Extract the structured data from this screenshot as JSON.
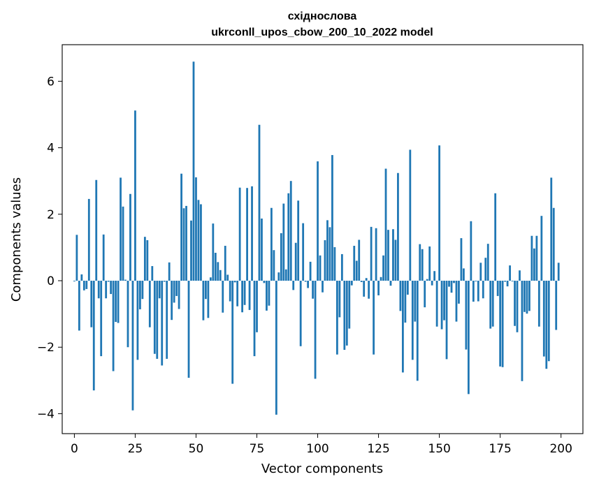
{
  "chart_data": {
    "type": "bar",
    "title": "східнослова",
    "subtitle": "ukrconll_upos_cbow_200_10_2022 model",
    "xlabel": "Vector components",
    "ylabel": "Components values",
    "xlim": [
      -5,
      209
    ],
    "ylim": [
      -4.6,
      7.1
    ],
    "xticks": [
      0,
      25,
      50,
      75,
      100,
      125,
      150,
      175,
      200
    ],
    "yticks": [
      -4,
      -2,
      0,
      2,
      4,
      6
    ],
    "ytick_labels": [
      "−4",
      "−2",
      "0",
      "2",
      "4",
      "6"
    ],
    "bar_color": "#1f77b4",
    "grid": false,
    "values": [
      -0.02,
      1.38,
      -1.5,
      0.19,
      -0.29,
      -0.25,
      2.46,
      -1.4,
      -3.3,
      3.03,
      -0.53,
      -2.27,
      1.39,
      -0.53,
      -0.03,
      -0.4,
      -2.72,
      -1.24,
      -1.27,
      3.1,
      2.23,
      0.03,
      -2.0,
      2.61,
      -3.9,
      5.12,
      -2.38,
      -0.86,
      -0.55,
      1.32,
      1.22,
      -1.4,
      0.44,
      -2.2,
      -2.35,
      -0.53,
      -2.55,
      -0.03,
      -2.35,
      0.55,
      -1.18,
      -0.66,
      -0.46,
      -0.85,
      3.22,
      2.18,
      2.25,
      -2.92,
      1.81,
      6.59,
      3.11,
      2.43,
      2.3,
      -1.19,
      -0.55,
      -1.12,
      0.1,
      1.72,
      0.84,
      0.56,
      0.32,
      -0.96,
      1.05,
      0.18,
      -0.62,
      -3.1,
      -0.05,
      -0.77,
      2.8,
      -0.95,
      -0.73,
      2.79,
      -0.88,
      2.84,
      -2.27,
      -1.55,
      4.69,
      1.87,
      -0.07,
      -0.9,
      -0.75,
      2.19,
      0.92,
      -4.03,
      0.25,
      1.43,
      2.32,
      0.34,
      2.63,
      3.0,
      -0.28,
      1.14,
      2.41,
      -1.97,
      1.73,
      -0.03,
      -0.22,
      0.57,
      -0.54,
      -2.95,
      3.59,
      0.76,
      -0.35,
      1.22,
      1.82,
      1.61,
      3.78,
      1.01,
      -2.22,
      -1.1,
      0.8,
      -2.08,
      -1.95,
      -1.44,
      -0.14,
      1.05,
      0.6,
      1.23,
      -0.04,
      -0.48,
      0.08,
      -0.54,
      1.62,
      -2.22,
      1.58,
      -0.44,
      0.11,
      0.76,
      3.37,
      1.53,
      -0.15,
      1.55,
      1.23,
      3.24,
      -0.91,
      -2.76,
      -1.26,
      -0.42,
      3.94,
      -2.38,
      -1.23,
      -3.01,
      1.1,
      0.95,
      -0.8,
      0.05,
      1.03,
      -0.14,
      0.29,
      -1.38,
      4.07,
      -1.46,
      -1.19,
      -2.36,
      -0.18,
      -0.36,
      -0.07,
      -1.23,
      -0.69,
      1.28,
      0.37,
      -2.07,
      -3.41,
      1.79,
      -0.63,
      -0.02,
      -0.62,
      0.54,
      -0.53,
      0.69,
      1.11,
      -1.44,
      -1.38,
      2.63,
      -0.46,
      -2.58,
      -2.6,
      -0.03,
      -0.17,
      0.46,
      -0.02,
      -1.36,
      -1.55,
      0.31,
      -3.02,
      -0.94,
      -0.99,
      -0.91,
      1.35,
      0.97,
      1.35,
      -1.38,
      1.95,
      -2.28,
      -2.65,
      -2.42,
      3.1,
      2.19,
      -1.48,
      0.54
    ]
  }
}
